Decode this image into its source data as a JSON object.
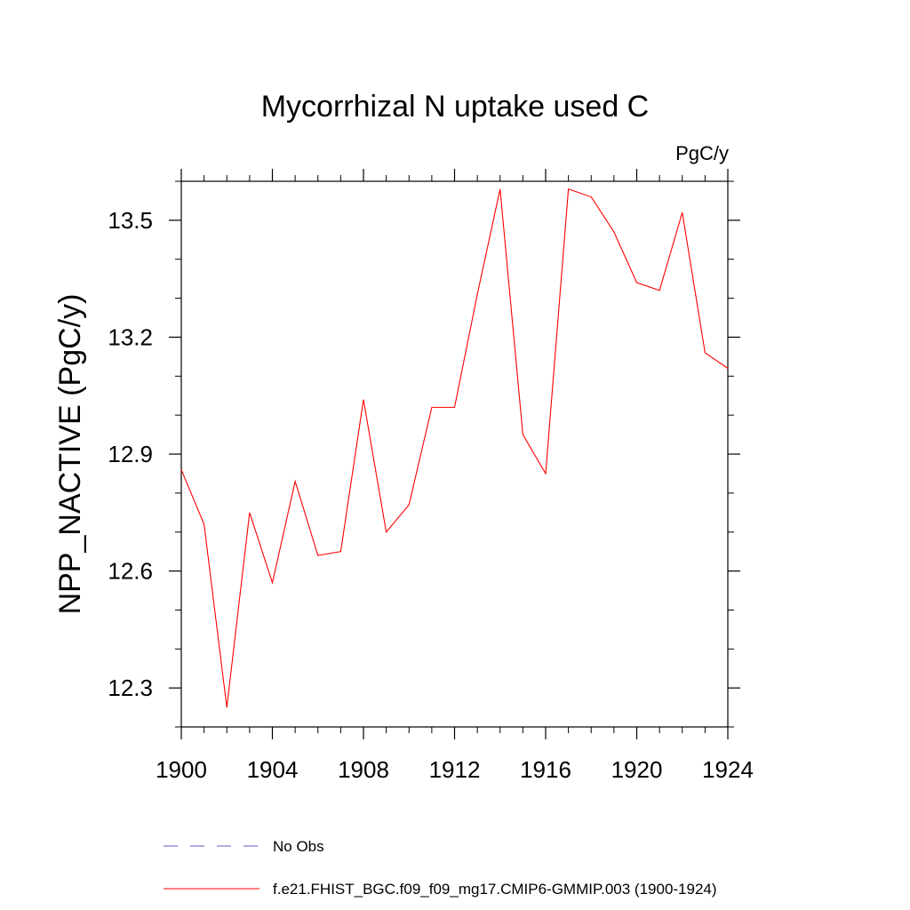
{
  "chart_data": {
    "type": "line",
    "title": "Mycorrhizal N uptake used C",
    "units": "PgC/y",
    "ylabel": "NPP_NACTIVE  (PgC/y)",
    "xlabel": "",
    "xlim": [
      1900,
      1924
    ],
    "ylim": [
      12.2,
      13.6
    ],
    "xticks": [
      1900,
      1904,
      1908,
      1912,
      1916,
      1920,
      1924
    ],
    "yticks": [
      12.3,
      12.6,
      12.9,
      13.2,
      13.5
    ],
    "xtick_labels": [
      "1900",
      "1904",
      "1908",
      "1912",
      "1916",
      "1920",
      "1924"
    ],
    "ytick_labels": [
      "12.3",
      "12.6",
      "12.9",
      "13.2",
      "13.5"
    ],
    "grid": false,
    "series": [
      {
        "name": "f.e21.FHIST_BGC.f09_f09_mg17.CMIP6-GMMIP.003 (1900-1924)",
        "color": "#ff0000",
        "x": [
          1900,
          1901,
          1902,
          1903,
          1904,
          1905,
          1906,
          1907,
          1908,
          1909,
          1910,
          1911,
          1912,
          1913,
          1914,
          1915,
          1916,
          1917,
          1918,
          1919,
          1920,
          1921,
          1922,
          1923,
          1924
        ],
        "values": [
          12.86,
          12.72,
          12.25,
          12.75,
          12.57,
          12.83,
          12.64,
          12.65,
          13.04,
          12.7,
          12.77,
          13.02,
          13.02,
          13.31,
          13.58,
          12.95,
          12.85,
          13.58,
          13.56,
          13.47,
          13.34,
          13.32,
          13.52,
          13.16,
          13.12
        ]
      }
    ],
    "legend": [
      {
        "label": "No Obs",
        "color": "#6a5acd",
        "style": "dashed"
      },
      {
        "label": "f.e21.FHIST_BGC.f09_f09_mg17.CMIP6-GMMIP.003 (1900-1924)",
        "color": "#ff0000",
        "style": "solid"
      }
    ],
    "legend_position": "bottom"
  }
}
